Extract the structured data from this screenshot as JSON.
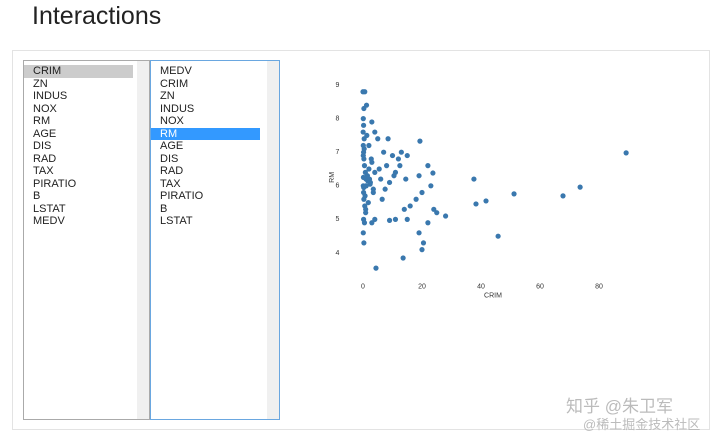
{
  "header": {
    "title": "Interactions"
  },
  "lists": [
    {
      "items": [
        "CRIM",
        "ZN",
        "INDUS",
        "NOX",
        "RM",
        "AGE",
        "DIS",
        "RAD",
        "TAX",
        "PIRATIO",
        "B",
        "LSTAT",
        "MEDV"
      ],
      "selected": 0
    },
    {
      "items": [
        "MEDV",
        "CRIM",
        "ZN",
        "INDUS",
        "NOX",
        "RM",
        "AGE",
        "DIS",
        "RAD",
        "TAX",
        "PIRATIO",
        "B",
        "LSTAT"
      ],
      "selected": 5
    }
  ],
  "chart_data": {
    "type": "scatter",
    "xlabel": "CRIM",
    "ylabel": "RM",
    "color": "#3a78ae",
    "xlim": [
      -8,
      94
    ],
    "ylim": [
      3.3,
      9.2
    ],
    "xticks": [
      0,
      20,
      40,
      60,
      80
    ],
    "yticks": [
      4,
      5,
      6,
      7,
      8,
      9
    ],
    "x": [
      0.0,
      0.6,
      1.2,
      0.3,
      0.1,
      0.2,
      0.05,
      0.4,
      0.1,
      0.2,
      0.3,
      0.5,
      0.8,
      1.0,
      0.1,
      0.2,
      0.3,
      0.6,
      0.9,
      1.5,
      2.0,
      2.5,
      3.0,
      3.5,
      4.0,
      0.1,
      0.4,
      0.7,
      1.1,
      1.8,
      2.2,
      0.2,
      0.5,
      0.9,
      1.3,
      0.1,
      0.3,
      4.4,
      13.6,
      20.0,
      20.5,
      19.0,
      22.0,
      24.0,
      25.0,
      28.0,
      15.0,
      11.0,
      9.0,
      3.0,
      4.0,
      14.0,
      16.0,
      18.0,
      20.0,
      23.0,
      23.7,
      22.0,
      19.0,
      15.0,
      13.0,
      12.0,
      10.0,
      8.0,
      7.0,
      5.0,
      8.5,
      4.0,
      2.0,
      3.0,
      1.0,
      19.3,
      6.0,
      9.0,
      11.0,
      5.5,
      7.5,
      10.5,
      12.5,
      14.5,
      6.5,
      3.5,
      2.8,
      89.2,
      73.6,
      67.8,
      51.2,
      45.8,
      41.7,
      38.3,
      37.6,
      0.15,
      0.25,
      1.6,
      2.4
    ],
    "values": [
      8.8,
      8.8,
      8.4,
      8.3,
      8.0,
      7.8,
      7.6,
      7.4,
      7.2,
      7.0,
      6.8,
      6.6,
      6.4,
      6.2,
      6.0,
      5.8,
      5.6,
      5.4,
      5.2,
      6.3,
      6.5,
      6.1,
      6.7,
      5.9,
      6.4,
      6.9,
      7.1,
      5.7,
      6.0,
      5.5,
      6.2,
      5.0,
      4.9,
      5.3,
      7.5,
      4.6,
      4.3,
      3.55,
      3.85,
      4.1,
      4.3,
      4.6,
      4.9,
      5.3,
      5.2,
      5.1,
      5.0,
      5.0,
      4.97,
      4.9,
      5.0,
      5.3,
      5.4,
      5.6,
      5.8,
      6.0,
      6.38,
      6.6,
      6.3,
      6.9,
      7.0,
      6.8,
      6.9,
      6.6,
      7.0,
      7.4,
      7.4,
      7.6,
      7.2,
      7.9,
      6.0,
      7.33,
      6.2,
      6.1,
      6.4,
      6.5,
      5.9,
      6.3,
      6.6,
      6.2,
      5.6,
      5.8,
      6.8,
      6.98,
      5.96,
      5.7,
      5.76,
      4.5,
      5.55,
      5.46,
      6.2,
      6.25,
      5.95,
      6.15,
      6.05
    ]
  },
  "watermarks": [
    "知乎 @朱卫军",
    "@稀土掘金技术社区"
  ]
}
